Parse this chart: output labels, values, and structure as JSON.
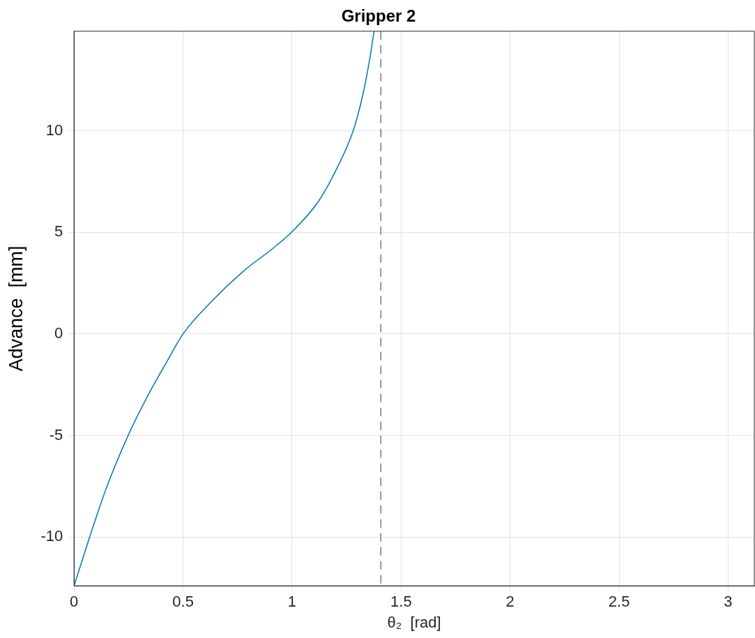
{
  "chart_data": {
    "type": "line",
    "title": "Gripper 2",
    "xlabel": "θ₂  [rad]",
    "ylabel": "Advance  [mm]",
    "x": [
      0,
      0.0716,
      0.147,
      0.248,
      0.339,
      0.425,
      0.5,
      0.628,
      0.778,
      0.906,
      0.997,
      1.12,
      1.206,
      1.28,
      1.323,
      1.355,
      1.376
    ],
    "series": [
      {
        "color": "#0072bd",
        "values": [
          -12.4,
          -10,
          -7.62,
          -5,
          -3.03,
          -1.38,
          0,
          1.57,
          3.1,
          4.16,
          5,
          6.51,
          8.16,
          9.99,
          11.7,
          13.46,
          14.9
        ]
      }
    ],
    "xlim": [
      0,
      3.12
    ],
    "xticks": [
      0,
      0.5,
      1,
      1.5,
      2,
      2.5,
      3
    ],
    "ylim": [
      -12.4,
      14.9
    ],
    "yticks": [
      -10,
      -5,
      0,
      5,
      10
    ],
    "ref_lines": [
      {
        "axis": "x",
        "value": 1.407,
        "color": "#555555",
        "line_style": "dashed"
      }
    ],
    "grid": true,
    "legend": false,
    "marker": "none",
    "line_style": "solid"
  }
}
